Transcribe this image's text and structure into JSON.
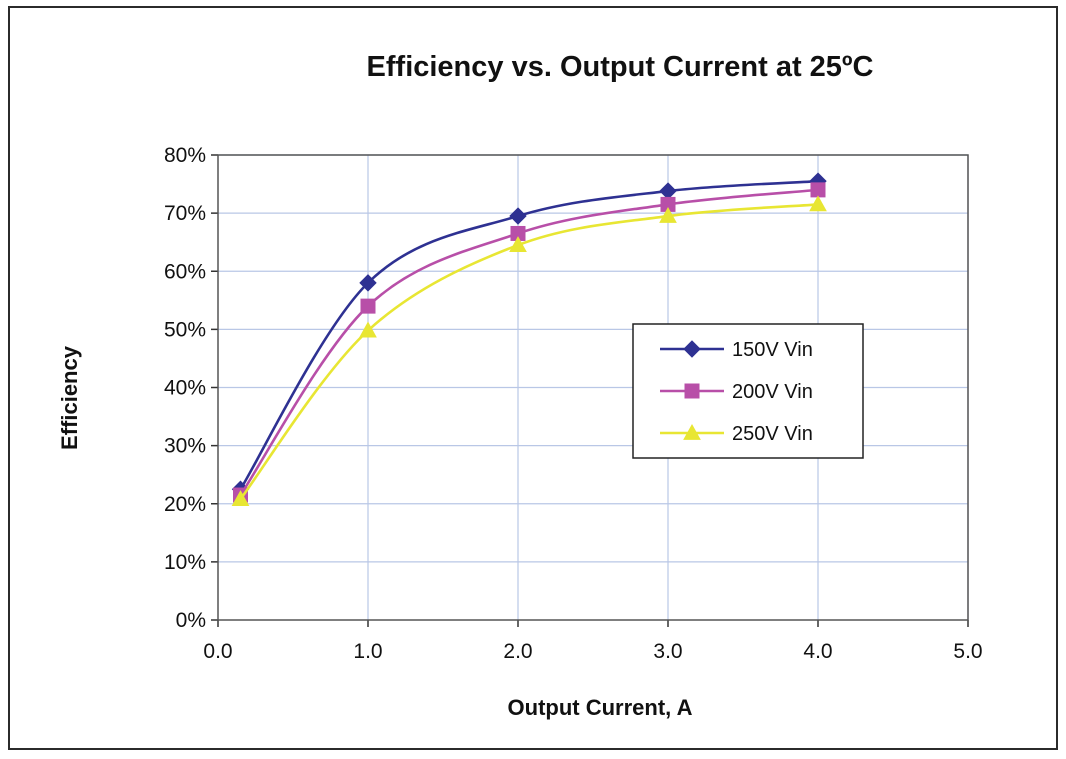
{
  "chart_data": {
    "type": "line",
    "title": "Efficiency vs. Output Current  at  25ºC",
    "xlabel": "Output Current, A",
    "ylabel": "Efficiency",
    "xlim": [
      0,
      5
    ],
    "ylim": [
      0,
      80
    ],
    "x_ticks": [
      "0.0",
      "1.0",
      "2.0",
      "3.0",
      "4.0",
      "5.0"
    ],
    "y_ticks": [
      "0%",
      "10%",
      "20%",
      "30%",
      "40%",
      "50%",
      "60%",
      "70%",
      "80%"
    ],
    "grid": true,
    "legend_position": "center-right",
    "series": [
      {
        "name": "150V Vin",
        "color": "#2e3192",
        "marker": "diamond",
        "x": [
          0.15,
          1.0,
          2.0,
          3.0,
          4.0
        ],
        "y": [
          22.5,
          58,
          69.5,
          73.8,
          75.5
        ]
      },
      {
        "name": "200V Vin",
        "color": "#b84fa8",
        "marker": "square",
        "x": [
          0.15,
          1.0,
          2.0,
          3.0,
          4.0
        ],
        "y": [
          21.5,
          54,
          66.5,
          71.5,
          74
        ]
      },
      {
        "name": "250V Vin",
        "color": "#e8e633",
        "marker": "triangle",
        "x": [
          0.15,
          1.0,
          2.0,
          3.0,
          4.0
        ],
        "y": [
          20.8,
          49.8,
          64.5,
          69.5,
          71.5
        ]
      }
    ]
  }
}
